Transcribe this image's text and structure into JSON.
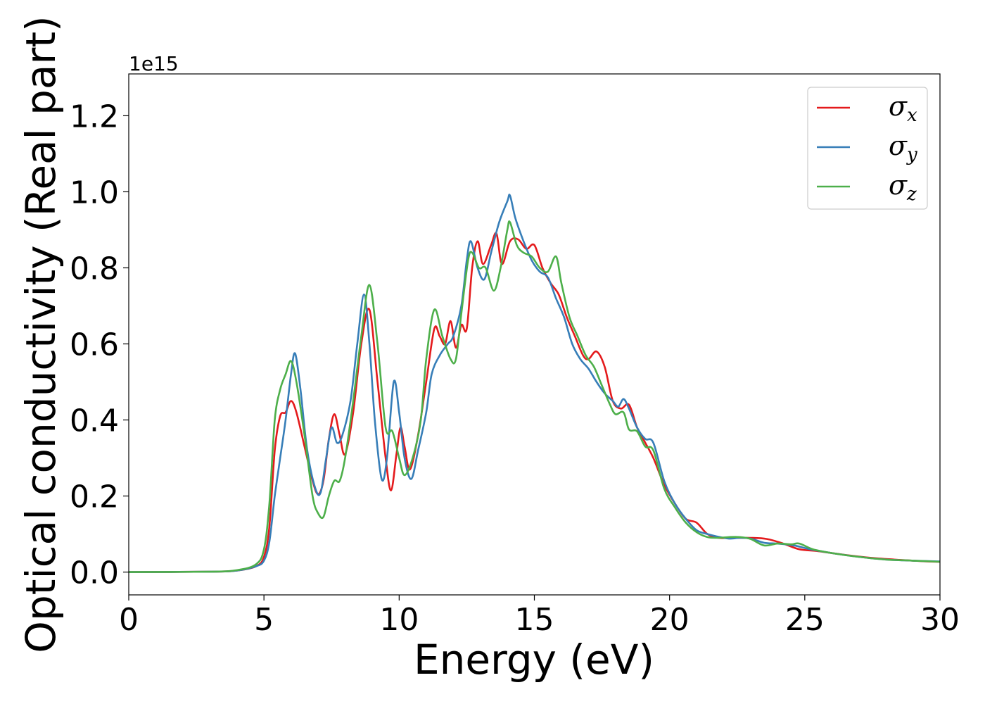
{
  "chart_data": {
    "type": "line",
    "title": "",
    "xlabel": "Energy (eV)",
    "ylabel": "Optical conductivity (Real part)",
    "y_offset_label": "1e15",
    "xlim": [
      0,
      30
    ],
    "ylim": [
      -0.06,
      1.31
    ],
    "xticks": [
      0,
      5,
      10,
      15,
      20,
      25,
      30
    ],
    "xtick_labels": [
      "0",
      "5",
      "10",
      "15",
      "20",
      "25",
      "30"
    ],
    "yticks": [
      0.0,
      0.2,
      0.4,
      0.6,
      0.8,
      1.0,
      1.2
    ],
    "ytick_labels": [
      "0.0",
      "0.2",
      "0.4",
      "0.6",
      "0.8",
      "1.0",
      "1.2"
    ],
    "grid": false,
    "legend_position": "top-right",
    "series": [
      {
        "name": "σx",
        "symbol": "σ",
        "subscript": "x",
        "color": "#e41a1c",
        "points": [
          [
            0,
            0.0
          ],
          [
            3,
            0.001
          ],
          [
            4,
            0.004
          ],
          [
            4.7,
            0.015
          ],
          [
            5.0,
            0.04
          ],
          [
            5.2,
            0.12
          ],
          [
            5.4,
            0.32
          ],
          [
            5.6,
            0.41
          ],
          [
            5.8,
            0.42
          ],
          [
            6.0,
            0.45
          ],
          [
            6.2,
            0.42
          ],
          [
            6.5,
            0.33
          ],
          [
            6.8,
            0.24
          ],
          [
            7.0,
            0.205
          ],
          [
            7.2,
            0.24
          ],
          [
            7.4,
            0.35
          ],
          [
            7.6,
            0.415
          ],
          [
            7.8,
            0.36
          ],
          [
            8.0,
            0.31
          ],
          [
            8.3,
            0.42
          ],
          [
            8.6,
            0.6
          ],
          [
            8.9,
            0.69
          ],
          [
            9.2,
            0.5
          ],
          [
            9.5,
            0.3
          ],
          [
            9.7,
            0.215
          ],
          [
            9.9,
            0.31
          ],
          [
            10.05,
            0.38
          ],
          [
            10.2,
            0.33
          ],
          [
            10.4,
            0.27
          ],
          [
            10.7,
            0.36
          ],
          [
            11.0,
            0.5
          ],
          [
            11.3,
            0.64
          ],
          [
            11.5,
            0.62
          ],
          [
            11.7,
            0.6
          ],
          [
            11.9,
            0.66
          ],
          [
            12.1,
            0.59
          ],
          [
            12.3,
            0.65
          ],
          [
            12.5,
            0.64
          ],
          [
            12.7,
            0.8
          ],
          [
            12.9,
            0.87
          ],
          [
            13.1,
            0.81
          ],
          [
            13.4,
            0.86
          ],
          [
            13.6,
            0.89
          ],
          [
            13.8,
            0.81
          ],
          [
            14.1,
            0.87
          ],
          [
            14.4,
            0.875
          ],
          [
            14.7,
            0.85
          ],
          [
            15.0,
            0.86
          ],
          [
            15.3,
            0.8
          ],
          [
            15.6,
            0.76
          ],
          [
            15.9,
            0.73
          ],
          [
            16.2,
            0.67
          ],
          [
            16.5,
            0.62
          ],
          [
            16.8,
            0.57
          ],
          [
            17.0,
            0.56
          ],
          [
            17.3,
            0.58
          ],
          [
            17.6,
            0.54
          ],
          [
            17.9,
            0.45
          ],
          [
            18.2,
            0.43
          ],
          [
            18.5,
            0.44
          ],
          [
            18.8,
            0.38
          ],
          [
            19.1,
            0.34
          ],
          [
            19.4,
            0.3
          ],
          [
            19.8,
            0.23
          ],
          [
            20.2,
            0.18
          ],
          [
            20.6,
            0.14
          ],
          [
            21.0,
            0.13
          ],
          [
            21.4,
            0.1
          ],
          [
            21.8,
            0.09
          ],
          [
            22.2,
            0.09
          ],
          [
            22.6,
            0.09
          ],
          [
            23.0,
            0.09
          ],
          [
            23.6,
            0.087
          ],
          [
            24.2,
            0.075
          ],
          [
            24.8,
            0.06
          ],
          [
            25.5,
            0.055
          ],
          [
            26.5,
            0.045
          ],
          [
            27.5,
            0.037
          ],
          [
            28.5,
            0.032
          ],
          [
            29.5,
            0.028
          ],
          [
            30,
            0.027
          ]
        ]
      },
      {
        "name": "σy",
        "symbol": "σ",
        "subscript": "y",
        "color": "#377eb8",
        "points": [
          [
            0,
            0.0
          ],
          [
            3,
            0.001
          ],
          [
            4,
            0.004
          ],
          [
            4.7,
            0.015
          ],
          [
            5.0,
            0.03
          ],
          [
            5.2,
            0.08
          ],
          [
            5.4,
            0.2
          ],
          [
            5.6,
            0.3
          ],
          [
            5.8,
            0.4
          ],
          [
            6.0,
            0.52
          ],
          [
            6.15,
            0.575
          ],
          [
            6.35,
            0.48
          ],
          [
            6.6,
            0.32
          ],
          [
            6.9,
            0.22
          ],
          [
            7.1,
            0.21
          ],
          [
            7.3,
            0.3
          ],
          [
            7.5,
            0.38
          ],
          [
            7.7,
            0.34
          ],
          [
            7.9,
            0.36
          ],
          [
            8.2,
            0.45
          ],
          [
            8.45,
            0.6
          ],
          [
            8.7,
            0.73
          ],
          [
            8.9,
            0.6
          ],
          [
            9.1,
            0.4
          ],
          [
            9.35,
            0.245
          ],
          [
            9.55,
            0.3
          ],
          [
            9.8,
            0.5
          ],
          [
            10.0,
            0.42
          ],
          [
            10.2,
            0.3
          ],
          [
            10.45,
            0.245
          ],
          [
            10.7,
            0.32
          ],
          [
            11.0,
            0.42
          ],
          [
            11.2,
            0.52
          ],
          [
            11.5,
            0.57
          ],
          [
            11.8,
            0.6
          ],
          [
            12.0,
            0.62
          ],
          [
            12.3,
            0.7
          ],
          [
            12.5,
            0.82
          ],
          [
            12.65,
            0.87
          ],
          [
            12.9,
            0.8
          ],
          [
            13.15,
            0.77
          ],
          [
            13.4,
            0.84
          ],
          [
            13.7,
            0.92
          ],
          [
            14.0,
            0.975
          ],
          [
            14.1,
            0.99
          ],
          [
            14.3,
            0.93
          ],
          [
            14.6,
            0.87
          ],
          [
            14.9,
            0.82
          ],
          [
            15.2,
            0.79
          ],
          [
            15.5,
            0.775
          ],
          [
            15.8,
            0.72
          ],
          [
            16.1,
            0.67
          ],
          [
            16.4,
            0.6
          ],
          [
            16.7,
            0.56
          ],
          [
            17.0,
            0.535
          ],
          [
            17.3,
            0.5
          ],
          [
            17.6,
            0.47
          ],
          [
            17.9,
            0.45
          ],
          [
            18.1,
            0.435
          ],
          [
            18.3,
            0.455
          ],
          [
            18.5,
            0.43
          ],
          [
            18.8,
            0.38
          ],
          [
            19.1,
            0.35
          ],
          [
            19.4,
            0.34
          ],
          [
            19.8,
            0.24
          ],
          [
            20.2,
            0.18
          ],
          [
            20.6,
            0.14
          ],
          [
            21.0,
            0.11
          ],
          [
            21.4,
            0.1
          ],
          [
            21.8,
            0.093
          ],
          [
            22.2,
            0.088
          ],
          [
            22.6,
            0.09
          ],
          [
            23.0,
            0.088
          ],
          [
            23.5,
            0.077
          ],
          [
            24.0,
            0.075
          ],
          [
            24.6,
            0.07
          ],
          [
            25.2,
            0.06
          ],
          [
            26.0,
            0.05
          ],
          [
            27.0,
            0.04
          ],
          [
            28.0,
            0.033
          ],
          [
            29.0,
            0.03
          ],
          [
            30,
            0.028
          ]
        ]
      },
      {
        "name": "σz",
        "symbol": "σ",
        "subscript": "z",
        "color": "#4daf4a",
        "points": [
          [
            0,
            0.0
          ],
          [
            3,
            0.001
          ],
          [
            4,
            0.005
          ],
          [
            4.7,
            0.02
          ],
          [
            5.0,
            0.06
          ],
          [
            5.2,
            0.18
          ],
          [
            5.4,
            0.4
          ],
          [
            5.6,
            0.48
          ],
          [
            5.8,
            0.52
          ],
          [
            6.0,
            0.555
          ],
          [
            6.2,
            0.5
          ],
          [
            6.5,
            0.36
          ],
          [
            6.8,
            0.2
          ],
          [
            7.0,
            0.155
          ],
          [
            7.2,
            0.145
          ],
          [
            7.4,
            0.2
          ],
          [
            7.6,
            0.24
          ],
          [
            7.8,
            0.24
          ],
          [
            8.0,
            0.3
          ],
          [
            8.3,
            0.45
          ],
          [
            8.6,
            0.62
          ],
          [
            8.9,
            0.755
          ],
          [
            9.2,
            0.6
          ],
          [
            9.5,
            0.38
          ],
          [
            9.75,
            0.37
          ],
          [
            10.0,
            0.3
          ],
          [
            10.2,
            0.255
          ],
          [
            10.5,
            0.3
          ],
          [
            10.8,
            0.4
          ],
          [
            11.0,
            0.56
          ],
          [
            11.3,
            0.69
          ],
          [
            11.6,
            0.62
          ],
          [
            11.9,
            0.56
          ],
          [
            12.1,
            0.56
          ],
          [
            12.3,
            0.68
          ],
          [
            12.55,
            0.82
          ],
          [
            12.7,
            0.84
          ],
          [
            12.95,
            0.8
          ],
          [
            13.2,
            0.8
          ],
          [
            13.5,
            0.74
          ],
          [
            13.75,
            0.8
          ],
          [
            14.0,
            0.9
          ],
          [
            14.1,
            0.92
          ],
          [
            14.35,
            0.86
          ],
          [
            14.6,
            0.84
          ],
          [
            14.9,
            0.83
          ],
          [
            15.2,
            0.8
          ],
          [
            15.5,
            0.79
          ],
          [
            15.8,
            0.83
          ],
          [
            16.0,
            0.76
          ],
          [
            16.3,
            0.67
          ],
          [
            16.6,
            0.62
          ],
          [
            16.9,
            0.57
          ],
          [
            17.2,
            0.54
          ],
          [
            17.5,
            0.49
          ],
          [
            17.8,
            0.44
          ],
          [
            18.0,
            0.415
          ],
          [
            18.3,
            0.42
          ],
          [
            18.5,
            0.375
          ],
          [
            18.8,
            0.37
          ],
          [
            19.1,
            0.33
          ],
          [
            19.4,
            0.32
          ],
          [
            19.8,
            0.22
          ],
          [
            20.2,
            0.17
          ],
          [
            20.6,
            0.13
          ],
          [
            21.0,
            0.105
          ],
          [
            21.4,
            0.092
          ],
          [
            21.8,
            0.09
          ],
          [
            22.2,
            0.092
          ],
          [
            22.6,
            0.092
          ],
          [
            23.0,
            0.087
          ],
          [
            23.5,
            0.07
          ],
          [
            24.0,
            0.075
          ],
          [
            24.5,
            0.073
          ],
          [
            24.8,
            0.075
          ],
          [
            25.3,
            0.06
          ],
          [
            26.0,
            0.05
          ],
          [
            27.0,
            0.04
          ],
          [
            28.0,
            0.033
          ],
          [
            29.0,
            0.03
          ],
          [
            30,
            0.027
          ]
        ]
      }
    ]
  }
}
